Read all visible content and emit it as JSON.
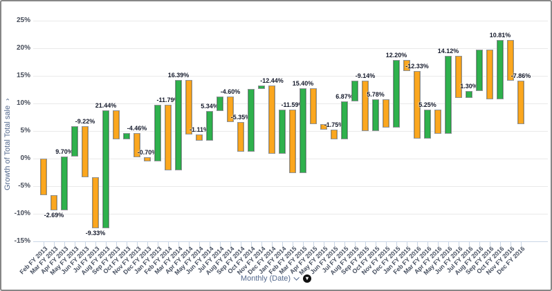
{
  "colors": {
    "increase": "#2fb14d",
    "decrease": "#fba71f",
    "gridline": "#e9e9e9",
    "axis_line": "#c9d6e6",
    "axis_title": "#54698d",
    "tick_text": "#454b58",
    "bar_label_text": "#14192b"
  },
  "icons": {
    "y_axis_caret": "chevron-down-icon",
    "x_axis_caret": "chevron-down-icon",
    "sort_badge": "sort-indicator-icon (black circle, white arrow)"
  },
  "chart_data": {
    "type": "bar",
    "subtype": "waterfall",
    "title": "",
    "ylabel": "Growth of Total Total sale",
    "xlabel": "Monthly (Date)",
    "ylim": [
      -15,
      25
    ],
    "grid": true,
    "legend": "none",
    "y_ticks": [
      "25%",
      "20%",
      "15%",
      "10%",
      "5%",
      "0%",
      "-5%",
      "-10%",
      "-15%"
    ],
    "value_note": "change = month-over-month growth %; bars are floating waterfall segments, green = increase, orange = decrease; label = data label visible in image (unlabeled bar changes estimated from gridlines)",
    "bars": [
      {
        "month": "Feb FY 2013",
        "change": -6.64,
        "label": ""
      },
      {
        "month": "Mar FY 2013",
        "change": -2.69,
        "label": "-2.69%",
        "label_side": "below"
      },
      {
        "month": "Apr FY 2013",
        "change": 9.7,
        "label": "9.70%",
        "label_side": "above"
      },
      {
        "month": "May FY 2013",
        "change": 5.5,
        "label": ""
      },
      {
        "month": "Jun FY 2013",
        "change": -9.22,
        "label": "-9.22%",
        "label_side": "above"
      },
      {
        "month": "Jul FY 2013",
        "change": -9.33,
        "label": "-9.33%",
        "label_side": "below"
      },
      {
        "month": "Aug FY 2013",
        "change": 21.44,
        "label": "21.44%",
        "label_side": "above"
      },
      {
        "month": "Sep FY 2013",
        "change": -5.3,
        "label": ""
      },
      {
        "month": "Oct FY 2013",
        "change": 1.2,
        "label": ""
      },
      {
        "month": "Nov FY 2013",
        "change": -4.46,
        "label": "-4.46%",
        "label_side": "above"
      },
      {
        "month": "Dec FY 2013",
        "change": -0.7,
        "label": "-0.70%",
        "label_side": "above"
      },
      {
        "month": "Jan FY 2013",
        "change": 10.2,
        "label": ""
      },
      {
        "month": "Feb FY 2014",
        "change": -11.79,
        "label": "-11.79%",
        "label_side": "above"
      },
      {
        "month": "Mar FY 2014",
        "change": 16.39,
        "label": "16.39%",
        "label_side": "above"
      },
      {
        "month": "Apr FY 2014",
        "change": -9.95,
        "label": ""
      },
      {
        "month": "May FY 2014",
        "change": -1.11,
        "label": "-1.11%",
        "label_side": "above"
      },
      {
        "month": "Jun FY 2014",
        "change": 5.34,
        "label": "5.34%",
        "label_side": "above"
      },
      {
        "month": "Jul FY 2014",
        "change": 2.66,
        "label": ""
      },
      {
        "month": "Aug FY 2014",
        "change": -4.6,
        "label": "-4.60%",
        "label_side": "above"
      },
      {
        "month": "Sep FY 2014",
        "change": -5.35,
        "label": "-5.35%",
        "label_side": "above"
      },
      {
        "month": "Oct FY 2014",
        "change": 11.31,
        "label": ""
      },
      {
        "month": "Nov FY 2014",
        "change": 0.66,
        "label": ""
      },
      {
        "month": "Dec FY 2014",
        "change": -12.44,
        "label": "-12.44%",
        "label_side": "above"
      },
      {
        "month": "Jan FY 2014",
        "change": 8.11,
        "label": ""
      },
      {
        "month": "Feb FY 2015",
        "change": -11.59,
        "label": "-11.59%",
        "label_side": "above"
      },
      {
        "month": "Mar FY 2015",
        "change": 15.4,
        "label": "15.40%",
        "label_side": "above"
      },
      {
        "month": "Apr FY 2015",
        "change": -6.44,
        "label": ""
      },
      {
        "month": "May FY 2015",
        "change": -1.05,
        "label": ""
      },
      {
        "month": "Jun FY 2015",
        "change": -1.75,
        "label": "-1.75%",
        "label_side": "above"
      },
      {
        "month": "Jul FY 2015",
        "change": 6.87,
        "label": "6.87%",
        "label_side": "above"
      },
      {
        "month": "Aug FY 2015",
        "change": 3.73,
        "label": ""
      },
      {
        "month": "Sep FY 2015",
        "change": -9.14,
        "label": "-9.14%",
        "label_side": "above"
      },
      {
        "month": "Oct FY 2015",
        "change": 5.78,
        "label": "5.78%",
        "label_side": "above"
      },
      {
        "month": "Nov FY 2015",
        "change": -5.09,
        "label": ""
      },
      {
        "month": "Dec FY 2015",
        "change": 12.2,
        "label": "12.20%",
        "label_side": "above"
      },
      {
        "month": "Jan FY 2015",
        "change": -1.93,
        "label": ""
      },
      {
        "month": "Feb FY 2016",
        "change": -12.33,
        "label": "-12.33%",
        "label_side": "above"
      },
      {
        "month": "Mar FY 2016",
        "change": 5.25,
        "label": "5.25%",
        "label_side": "above"
      },
      {
        "month": "Apr FY 2016",
        "change": -4.34,
        "label": ""
      },
      {
        "month": "May FY 2016",
        "change": 14.12,
        "label": "14.12%",
        "label_side": "above"
      },
      {
        "month": "Jun FY 2016",
        "change": -7.62,
        "label": ""
      },
      {
        "month": "Jul FY 2016",
        "change": 1.3,
        "label": "1.30%",
        "label_side": "above"
      },
      {
        "month": "Aug FY 2016",
        "change": 7.45,
        "label": ""
      },
      {
        "month": "Sep FY 2016",
        "change": -9.0,
        "label": ""
      },
      {
        "month": "Oct FY 2016",
        "change": 10.81,
        "label": "10.81%",
        "label_side": "above"
      },
      {
        "month": "Nov FY 2016",
        "change": -7.4,
        "label": ""
      },
      {
        "month": "Dec FY 2016",
        "change": -7.86,
        "label": "-7.86%",
        "label_side": "above"
      }
    ]
  }
}
